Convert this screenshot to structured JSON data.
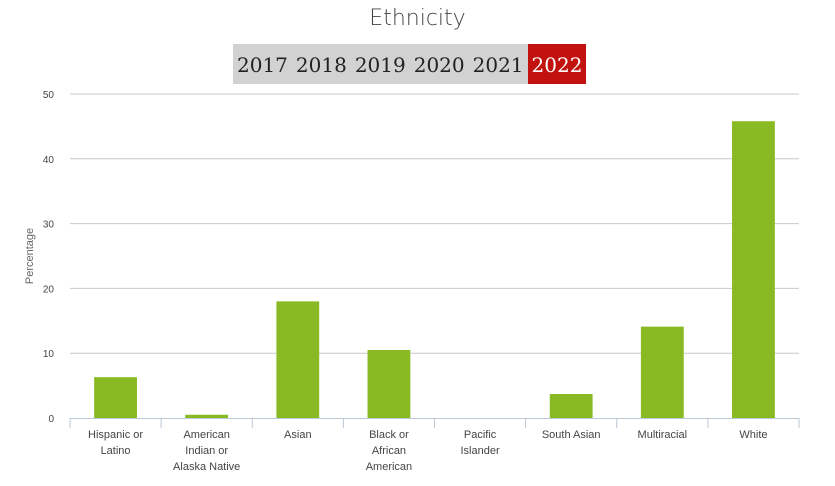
{
  "header": {
    "title": "Ethnicity"
  },
  "year_tabs": [
    {
      "label": "2017",
      "active": false
    },
    {
      "label": "2018",
      "active": false
    },
    {
      "label": "2019",
      "active": false
    },
    {
      "label": "2020",
      "active": false
    },
    {
      "label": "2021",
      "active": false
    },
    {
      "label": "2022",
      "active": true
    }
  ],
  "colors": {
    "bar": "#8aba23",
    "active_tab": "#c1120f",
    "tab_bg": "#d2d2d2"
  },
  "chart_data": {
    "type": "bar",
    "title": "Ethnicity",
    "xlabel": "",
    "ylabel": "Percentage",
    "ylim": [
      0,
      50
    ],
    "yticks": [
      0,
      10,
      20,
      30,
      40,
      50
    ],
    "grid": true,
    "categories": [
      [
        "Hispanic or",
        "Latino"
      ],
      [
        "American",
        "Indian or",
        "Alaska Native"
      ],
      [
        "Asian"
      ],
      [
        "Black or",
        "African",
        "American"
      ],
      [
        "Pacific",
        "Islander"
      ],
      [
        "South Asian"
      ],
      [
        "Multiracial"
      ],
      [
        "White"
      ]
    ],
    "values": [
      6.3,
      0.5,
      18.0,
      10.5,
      0,
      3.7,
      14.1,
      45.8
    ]
  }
}
